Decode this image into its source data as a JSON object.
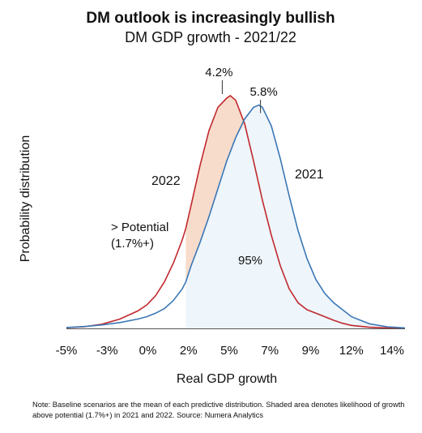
{
  "chart_data": {
    "type": "area",
    "title": "DM outlook is increasingly bullish",
    "subtitle": "DM GDP growth - 2021/22",
    "xlabel": "Real GDP growth",
    "ylabel": "Probability distribution",
    "x_ticks": [
      "-5%",
      "-3%",
      "0%",
      "2%",
      "5%",
      "7%",
      "9%",
      "12%",
      "14%"
    ],
    "xlim": [
      -5,
      14
    ],
    "potential_threshold": 1.7,
    "colors": {
      "2022": "#c0282d",
      "2021": "#3a78b5",
      "shade_2022": "#f8dccb",
      "shade_2021": "#eef5fb"
    },
    "series": [
      {
        "name": "2022",
        "peak_label": "4.2%",
        "x": [
          -5,
          -4,
          -3,
          -2,
          -1,
          -0.5,
          0,
          0.5,
          1,
          1.5,
          1.7,
          2,
          2.5,
          3,
          3.5,
          4,
          4.2,
          4.5,
          5,
          5.5,
          6,
          6.5,
          7,
          7.5,
          8,
          8.5,
          9,
          9.5,
          10,
          10.5,
          11,
          12,
          13,
          14
        ],
        "y": [
          0.003,
          0.007,
          0.018,
          0.04,
          0.075,
          0.1,
          0.14,
          0.2,
          0.28,
          0.38,
          0.43,
          0.53,
          0.7,
          0.85,
          0.95,
          0.99,
          1.0,
          0.98,
          0.88,
          0.72,
          0.55,
          0.4,
          0.27,
          0.17,
          0.11,
          0.08,
          0.065,
          0.05,
          0.035,
          0.022,
          0.013,
          0.005,
          0.002,
          0.001
        ]
      },
      {
        "name": "2021",
        "peak_label": "5.8%",
        "x": [
          -5,
          -4,
          -3,
          -2,
          -1,
          -0.5,
          0,
          0.5,
          1,
          1.5,
          1.7,
          2,
          2.5,
          3,
          3.5,
          4,
          4.5,
          5,
          5.5,
          5.8,
          6,
          6.5,
          7,
          7.5,
          8,
          8.5,
          9,
          9.5,
          10,
          10.5,
          11,
          12,
          13,
          14
        ],
        "y": [
          0.004,
          0.008,
          0.015,
          0.025,
          0.04,
          0.05,
          0.065,
          0.085,
          0.12,
          0.17,
          0.2,
          0.27,
          0.37,
          0.48,
          0.6,
          0.72,
          0.82,
          0.9,
          0.95,
          0.96,
          0.95,
          0.87,
          0.73,
          0.57,
          0.42,
          0.3,
          0.21,
          0.15,
          0.11,
          0.08,
          0.05,
          0.02,
          0.007,
          0.002
        ]
      }
    ],
    "annotations": {
      "potential": "> Potential",
      "potential_value": "(1.7%+)",
      "shaded_share": "95%"
    },
    "note_lines": [
      "Note: Baseline scenarios are the mean of each predictive distribution. Shaded area denotes likelihood of growth",
      "above potential (1.7%+) in 2021 and 2022. Source: Numera Analytics"
    ]
  }
}
